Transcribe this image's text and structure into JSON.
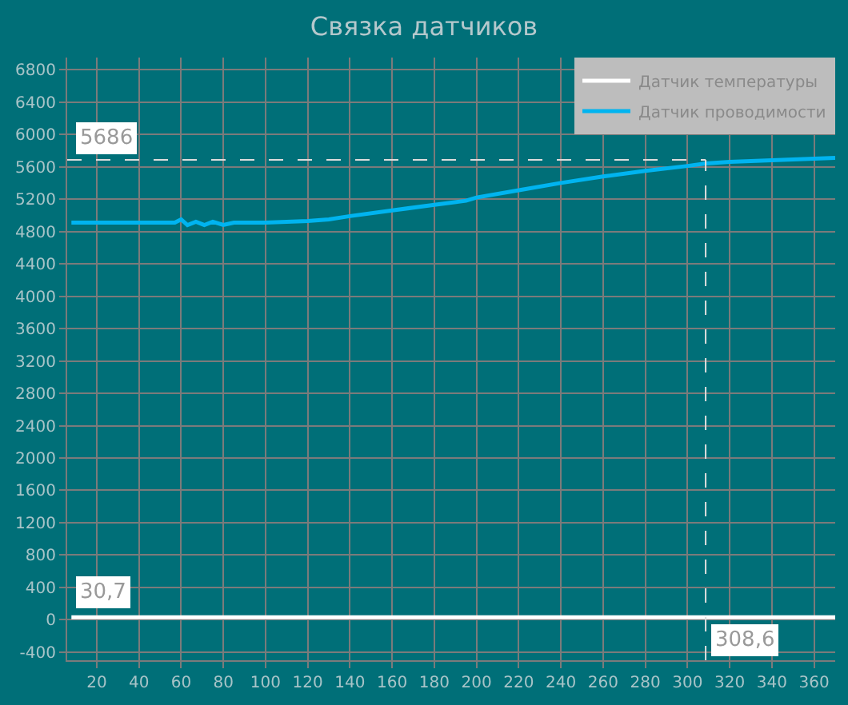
{
  "chart_data": {
    "type": "line",
    "title": "Связка датчиков",
    "series": [
      {
        "name": "Датчик температуры",
        "color": "#ffffff",
        "x": [
          8,
          370
        ],
        "values": [
          30.7,
          30.7
        ]
      },
      {
        "name": "Датчик проводимости",
        "color": "#00b4f0",
        "x": [
          8,
          30,
          57,
          60,
          63,
          67,
          71,
          75,
          80,
          85,
          100,
          120,
          130,
          140,
          160,
          180,
          195,
          200,
          220,
          240,
          260,
          280,
          300,
          308.6,
          320,
          340,
          360,
          370
        ],
        "values": [
          4910,
          4910,
          4910,
          4950,
          4880,
          4920,
          4880,
          4920,
          4880,
          4910,
          4910,
          4930,
          4950,
          4990,
          5060,
          5130,
          5180,
          5220,
          5310,
          5400,
          5480,
          5550,
          5610,
          5640,
          5660,
          5680,
          5700,
          5710
        ]
      }
    ],
    "xlim": [
      6,
      370
    ],
    "xticks": [
      20,
      40,
      60,
      80,
      100,
      120,
      140,
      160,
      180,
      200,
      220,
      240,
      260,
      280,
      300,
      320,
      340,
      360
    ],
    "ylim": [
      -500,
      6950
    ],
    "yticks": [
      -400,
      0,
      400,
      800,
      1200,
      1600,
      2000,
      2400,
      2800,
      3200,
      3600,
      4000,
      4400,
      4800,
      5200,
      5600,
      6000,
      6400,
      6800
    ],
    "ref_lines": [
      {
        "axis": "y",
        "value": 5686,
        "label": "5686",
        "color": "#dddddd",
        "line_style": "dashed"
      },
      {
        "axis": "x",
        "value": 308.6,
        "label": "308,6",
        "color": "#dddddd",
        "line_style": "dashed"
      }
    ],
    "annotations": [
      {
        "text": "30,7",
        "y": 30.7
      }
    ],
    "grid": true,
    "legend": "top right",
    "marker": "none",
    "line_style": "solid"
  }
}
